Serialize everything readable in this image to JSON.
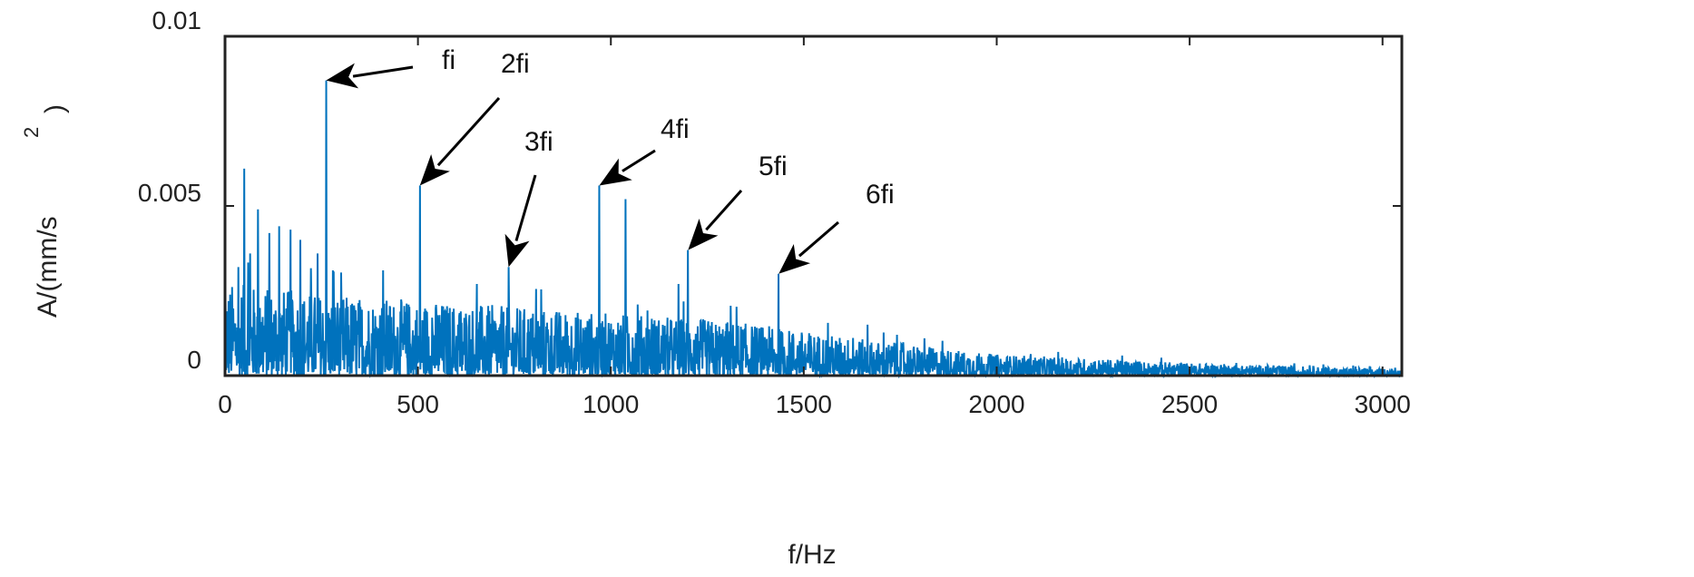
{
  "chart_data": {
    "type": "line",
    "xlabel": "f/Hz",
    "ylabel_main": "A/(mm/s",
    "ylabel_sup": "2",
    "ylabel_close": ")",
    "xlim": [
      0,
      3050
    ],
    "ylim": [
      0,
      0.01
    ],
    "x_ticks": [
      0,
      500,
      1000,
      1500,
      2000,
      2500,
      3000
    ],
    "x_tick_labels": [
      "0",
      "500",
      "1000",
      "1500",
      "2000",
      "2500",
      "3000"
    ],
    "y_ticks": [
      0,
      0.005,
      0.01
    ],
    "y_tick_labels": [
      "0",
      "0.005",
      "0.01"
    ],
    "grid": false,
    "series": [
      {
        "color": "#0072BD",
        "peaks": [
          {
            "x": 35,
            "y": 0.0032
          },
          {
            "x": 50,
            "y": 0.0061
          },
          {
            "x": 65,
            "y": 0.0036
          },
          {
            "x": 85,
            "y": 0.0049
          },
          {
            "x": 115,
            "y": 0.0042
          },
          {
            "x": 140,
            "y": 0.0044
          },
          {
            "x": 170,
            "y": 0.0043
          },
          {
            "x": 195,
            "y": 0.004
          },
          {
            "x": 240,
            "y": 0.0036
          },
          {
            "x": 262,
            "y": 0.0087
          },
          {
            "x": 280,
            "y": 0.0031
          },
          {
            "x": 410,
            "y": 0.0031
          },
          {
            "x": 505,
            "y": 0.0056
          },
          {
            "x": 735,
            "y": 0.0032
          },
          {
            "x": 970,
            "y": 0.0056
          },
          {
            "x": 1038,
            "y": 0.0052
          },
          {
            "x": 1175,
            "y": 0.0027
          },
          {
            "x": 1200,
            "y": 0.0037
          },
          {
            "x": 1435,
            "y": 0.003
          },
          {
            "x": 1665,
            "y": 0.0015
          }
        ],
        "noise_envelope": [
          {
            "x": 0,
            "y": 0.0022
          },
          {
            "x": 300,
            "y": 0.0019
          },
          {
            "x": 800,
            "y": 0.0016
          },
          {
            "x": 1300,
            "y": 0.0013
          },
          {
            "x": 1700,
            "y": 0.0008
          },
          {
            "x": 2000,
            "y": 0.0005
          },
          {
            "x": 2500,
            "y": 0.0003
          },
          {
            "x": 3050,
            "y": 0.00015
          }
        ]
      }
    ],
    "annotations": [
      {
        "text": "fi",
        "x": 262,
        "y": 0.0087
      },
      {
        "text": "2fi",
        "x": 505,
        "y": 0.0056
      },
      {
        "text": "3fi",
        "x": 735,
        "y": 0.0032
      },
      {
        "text": "4fi",
        "x": 970,
        "y": 0.0056
      },
      {
        "text": "5fi",
        "x": 1200,
        "y": 0.0037
      },
      {
        "text": "6fi",
        "x": 1435,
        "y": 0.003
      }
    ]
  }
}
